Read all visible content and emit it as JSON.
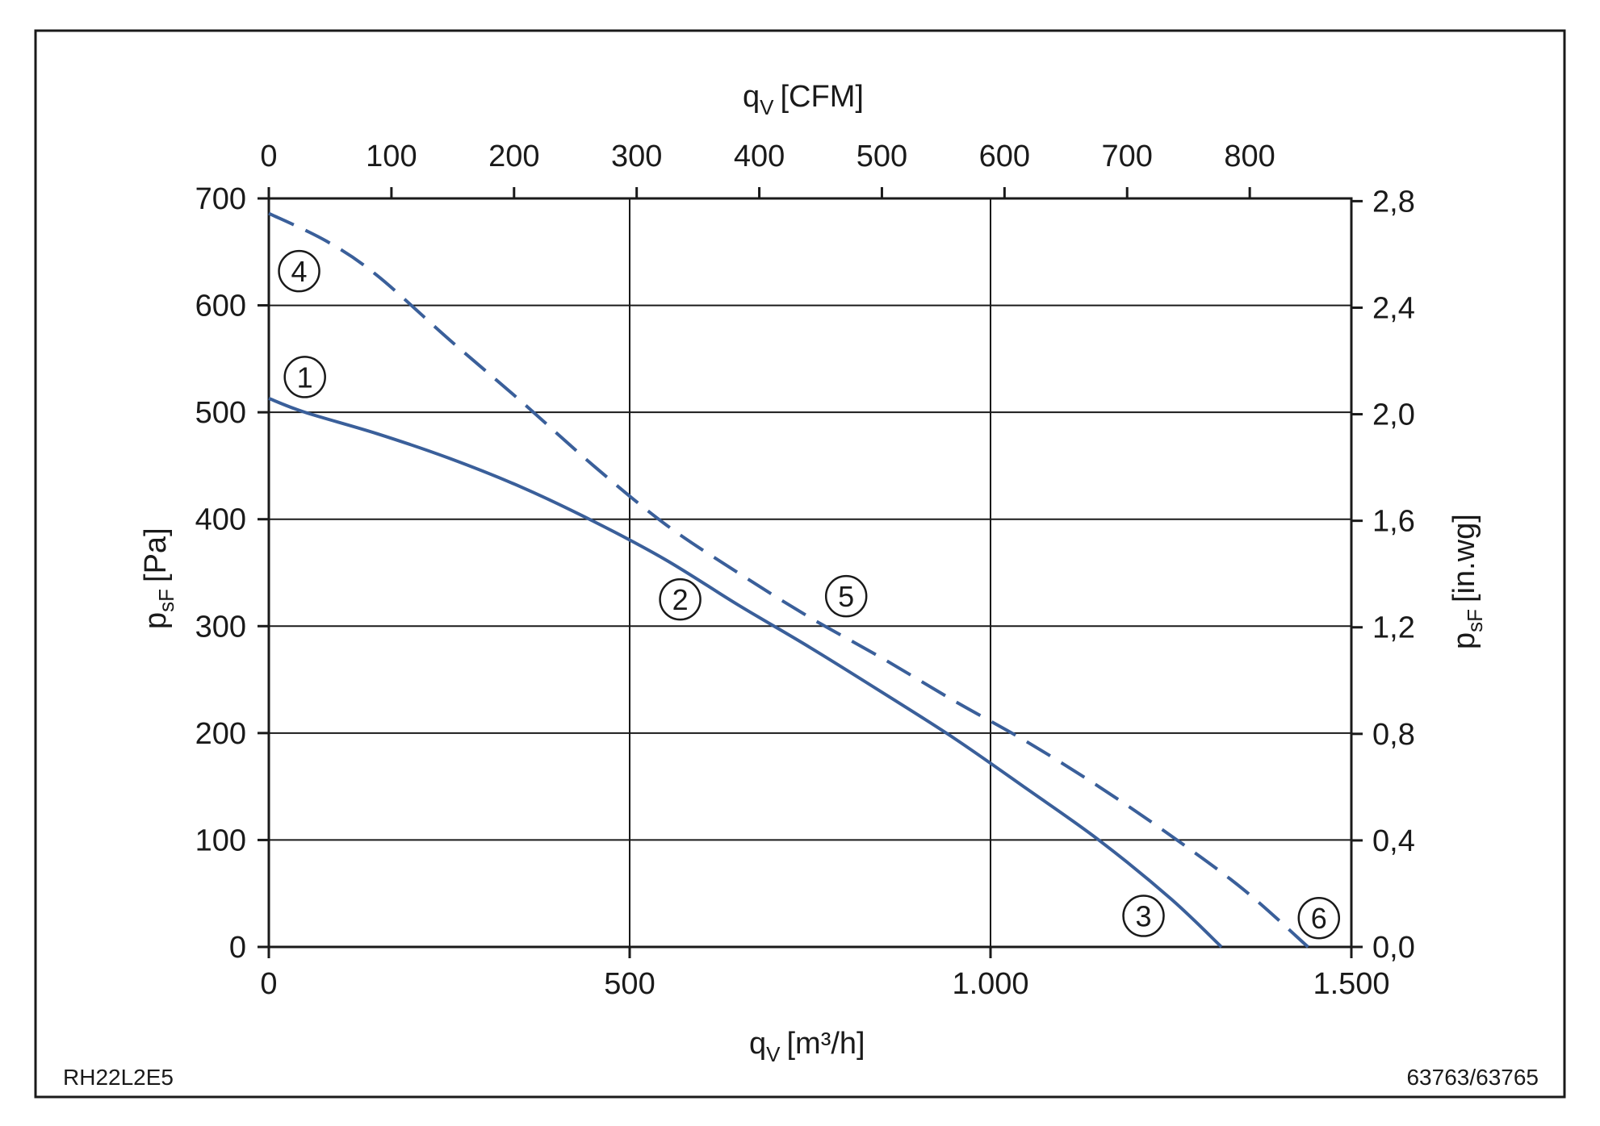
{
  "chart_data": {
    "type": "line",
    "x_axis": {
      "label": "q",
      "label_sub": "V",
      "label_unit": "[m³/h]",
      "range": [
        0,
        1500
      ],
      "ticks": [
        0,
        500,
        1000,
        1500
      ],
      "tick_labels": [
        "0",
        "500",
        "1.000",
        "1.500"
      ]
    },
    "x2_axis": {
      "label": "q",
      "label_sub": "V",
      "label_unit": "[CFM]",
      "range_equiv_m3h": [
        0,
        1500
      ],
      "ticks_cfm": [
        0,
        100,
        200,
        300,
        400,
        500,
        600,
        700,
        800
      ],
      "tick_labels": [
        "0",
        "100",
        "200",
        "300",
        "400",
        "500",
        "600",
        "700",
        "800"
      ]
    },
    "y_axis": {
      "label": "p",
      "label_sub": "sF",
      "label_unit": "[Pa]",
      "range": [
        0,
        700
      ],
      "ticks": [
        0,
        100,
        200,
        300,
        400,
        500,
        600,
        700
      ],
      "tick_labels": [
        "0",
        "100",
        "200",
        "300",
        "400",
        "500",
        "600",
        "700"
      ]
    },
    "y2_axis": {
      "label": "p",
      "label_sub": "sF",
      "label_unit": "[in.wg]",
      "ticks_inwg": [
        0.0,
        0.4,
        0.8,
        1.2,
        1.6,
        2.0,
        2.4,
        2.8
      ],
      "tick_labels": [
        "0,0",
        "0,4",
        "0,8",
        "1,2",
        "1,6",
        "2,0",
        "2,4",
        "2,8"
      ]
    },
    "grid": true,
    "series": [
      {
        "style": "solid",
        "color": "#3a5f9a",
        "x": [
          0,
          50,
          150,
          250,
          350,
          450,
          550,
          650,
          750,
          850,
          950,
          1050,
          1150,
          1250,
          1320
        ],
        "y": [
          513,
          500,
          480,
          457,
          430,
          398,
          362,
          320,
          280,
          238,
          195,
          148,
          100,
          45,
          0
        ]
      },
      {
        "style": "dashed",
        "color": "#3a5f9a",
        "x": [
          0,
          80,
          150,
          250,
          350,
          450,
          550,
          650,
          750,
          850,
          950,
          1050,
          1150,
          1250,
          1350,
          1440
        ],
        "y": [
          686,
          660,
          628,
          568,
          510,
          450,
          395,
          350,
          308,
          270,
          230,
          192,
          150,
          104,
          54,
          0
        ]
      }
    ],
    "markers": [
      {
        "label": "1",
        "x": 50,
        "y": 533
      },
      {
        "label": "2",
        "x": 570,
        "y": 325
      },
      {
        "label": "3",
        "x": 1212,
        "y": 29
      },
      {
        "label": "4",
        "x": 42,
        "y": 632
      },
      {
        "label": "5",
        "x": 800,
        "y": 328
      },
      {
        "label": "6",
        "x": 1455,
        "y": 27
      }
    ]
  },
  "footer": {
    "left": "RH22L2E5",
    "right": "63763/63765"
  },
  "colors": {
    "curve": "#3a5f9a",
    "grid": "#1a1a1a",
    "background": "#ffffff"
  }
}
